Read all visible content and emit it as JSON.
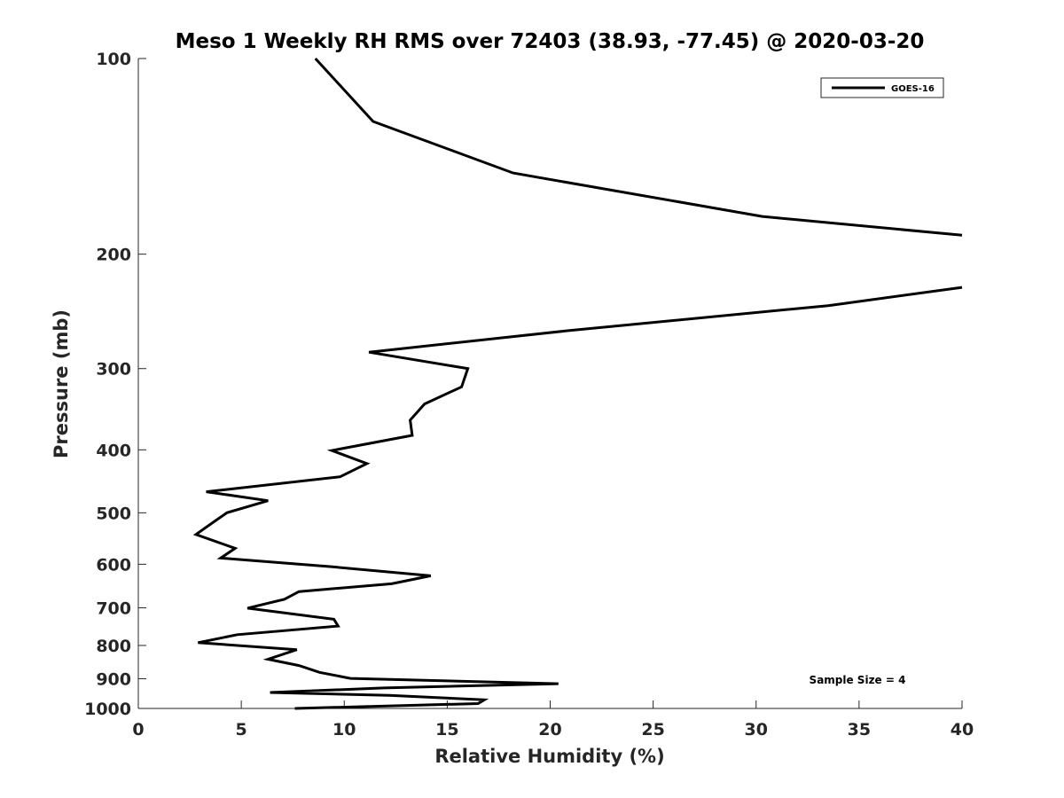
{
  "chart_data": {
    "type": "line",
    "title": "Meso 1 Weekly RH RMS over 72403 (38.93, -77.45) @ 2020-03-20",
    "xlabel": "Relative Humidity (%)",
    "ylabel": "Pressure (mb)",
    "xlim": [
      0,
      40
    ],
    "ylim": [
      100,
      1000
    ],
    "y_scale": "log",
    "y_reversed": true,
    "grid": false,
    "x_ticks": [
      0,
      5,
      10,
      15,
      20,
      25,
      30,
      35,
      40
    ],
    "y_ticks": [
      100,
      200,
      300,
      400,
      500,
      600,
      700,
      800,
      900,
      1000
    ],
    "legend": {
      "position": "top-right",
      "entries": [
        "GOES-16"
      ]
    },
    "annotation": "Sample Size = 4",
    "series": [
      {
        "name": "GOES-16",
        "color": "#000000",
        "points": [
          [
            8.6,
            100
          ],
          [
            11.4,
            125
          ],
          [
            18.2,
            150
          ],
          [
            30.3,
            175
          ],
          [
            40.0,
            187
          ],
          [
            null,
            null
          ],
          [
            40.0,
            225
          ],
          [
            33.5,
            240
          ],
          [
            21.0,
            262
          ],
          [
            11.2,
            283
          ],
          [
            16.0,
            300
          ],
          [
            15.7,
            320
          ],
          [
            13.9,
            340
          ],
          [
            13.2,
            360
          ],
          [
            13.3,
            380
          ],
          [
            9.4,
            401
          ],
          [
            11.1,
            420
          ],
          [
            9.8,
            440
          ],
          [
            3.3,
            464
          ],
          [
            6.3,
            479
          ],
          [
            4.3,
            500
          ],
          [
            3.6,
            518
          ],
          [
            2.8,
            540
          ],
          [
            4.7,
            567
          ],
          [
            4.0,
            587
          ],
          [
            9.3,
            605
          ],
          [
            14.2,
            625
          ],
          [
            12.3,
            643
          ],
          [
            7.8,
            661
          ],
          [
            7.1,
            679
          ],
          [
            5.3,
            701
          ],
          [
            9.5,
            729
          ],
          [
            9.7,
            747
          ],
          [
            4.8,
            770
          ],
          [
            2.9,
            792
          ],
          [
            7.7,
            812
          ],
          [
            6.3,
            840
          ],
          [
            7.8,
            859
          ],
          [
            8.8,
            880
          ],
          [
            10.3,
            899
          ],
          [
            20.4,
            916
          ],
          [
            11.9,
            930
          ],
          [
            6.4,
            945
          ],
          [
            12.2,
            955
          ],
          [
            16.8,
            970
          ],
          [
            16.5,
            983
          ],
          [
            7.6,
            1000
          ]
        ]
      }
    ]
  }
}
